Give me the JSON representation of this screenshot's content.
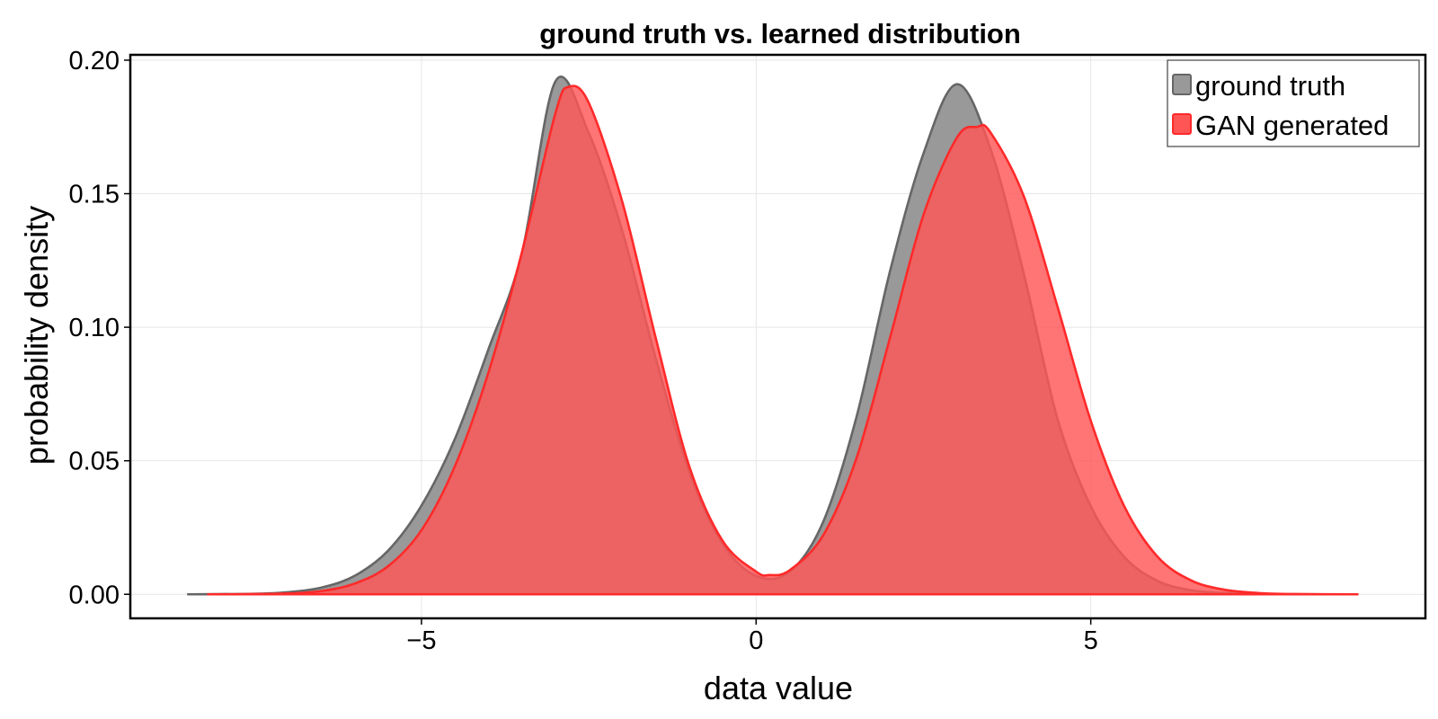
{
  "chart_data": {
    "type": "area",
    "title": "ground truth vs. learned distribution",
    "xlabel": "data value",
    "ylabel": "probability density",
    "xlim": [
      -9.35,
      10.0
    ],
    "ylim": [
      -0.009,
      0.202
    ],
    "xticks": [
      -5,
      0,
      5
    ],
    "xtick_labels": [
      "−5",
      "0",
      "5"
    ],
    "yticks": [
      0.0,
      0.05,
      0.1,
      0.15,
      0.2
    ],
    "ytick_labels": [
      "0.00",
      "0.05",
      "0.10",
      "0.15",
      "0.20"
    ],
    "grid": true,
    "legend_position": "top-right",
    "series": [
      {
        "name": "ground truth",
        "fill": "#999999",
        "stroke": "#666666",
        "x": [
          -8.5,
          -7.5,
          -7.0,
          -6.5,
          -6.0,
          -5.5,
          -5.0,
          -4.5,
          -4.0,
          -3.5,
          -3.0,
          -2.5,
          -2.0,
          -1.5,
          -1.0,
          -0.5,
          0.0,
          0.5,
          1.0,
          1.5,
          2.0,
          2.5,
          3.0,
          3.5,
          4.0,
          4.5,
          5.0,
          5.5,
          6.0,
          6.5,
          7.0,
          7.5,
          8.5
        ],
        "y": [
          0.0,
          0.0002,
          0.0008,
          0.0025,
          0.0069,
          0.0163,
          0.0332,
          0.0582,
          0.0917,
          0.1277,
          0.192,
          0.1727,
          0.1361,
          0.0884,
          0.0461,
          0.0189,
          0.0069,
          0.0084,
          0.027,
          0.0664,
          0.1209,
          0.165,
          0.191,
          0.167,
          0.12,
          0.066,
          0.033,
          0.014,
          0.005,
          0.0015,
          0.0005,
          0.0001,
          0.0
        ]
      },
      {
        "name": "GAN generated",
        "fill": "#ff5555",
        "stroke": "#ff2a2a",
        "x": [
          -8.2,
          -7.5,
          -7.0,
          -6.5,
          -6.0,
          -5.5,
          -5.0,
          -4.5,
          -4.0,
          -3.5,
          -3.0,
          -2.8,
          -2.5,
          -2.0,
          -1.5,
          -1.0,
          -0.5,
          0.0,
          0.2,
          0.5,
          1.0,
          1.5,
          2.0,
          2.5,
          3.0,
          3.3,
          3.5,
          4.0,
          4.5,
          5.0,
          5.5,
          6.0,
          6.5,
          7.0,
          7.5,
          8.0,
          9.0
        ],
        "y": [
          0.0,
          0.0001,
          0.0003,
          0.0012,
          0.004,
          0.0105,
          0.024,
          0.048,
          0.083,
          0.128,
          0.18,
          0.19,
          0.184,
          0.147,
          0.096,
          0.048,
          0.02,
          0.0085,
          0.0072,
          0.009,
          0.022,
          0.051,
          0.096,
          0.142,
          0.171,
          0.175,
          0.173,
          0.149,
          0.108,
          0.065,
          0.033,
          0.014,
          0.0052,
          0.0017,
          0.0005,
          0.0001,
          0.0
        ]
      }
    ]
  }
}
